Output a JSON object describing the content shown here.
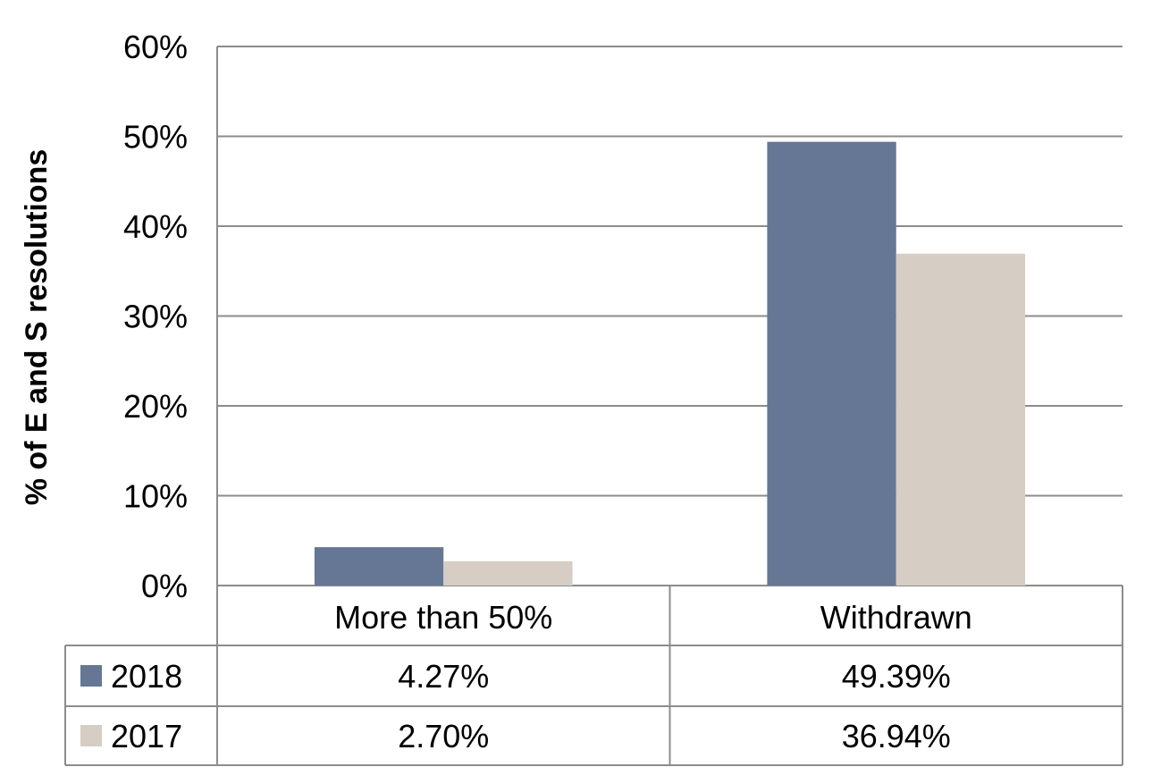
{
  "chart_data": {
    "type": "bar",
    "categories": [
      "More than 50%",
      "Withdrawn"
    ],
    "series": [
      {
        "name": "2018",
        "values": [
          4.27,
          49.39
        ],
        "color": "#667795",
        "labels": [
          "4.27%",
          "49.39%"
        ]
      },
      {
        "name": "2017",
        "values": [
          2.7,
          36.94
        ],
        "color": "#d6cdc4",
        "labels": [
          "2.70%",
          "36.94%"
        ]
      }
    ],
    "ylabel": "% of E and S resolutions",
    "ylim": [
      0,
      60
    ],
    "yticks": [
      0,
      10,
      20,
      30,
      40,
      50,
      60
    ],
    "ytick_labels": [
      "0%",
      "10%",
      "20%",
      "30%",
      "40%",
      "50%",
      "60%"
    ],
    "grid": true,
    "legend": "data-table"
  }
}
